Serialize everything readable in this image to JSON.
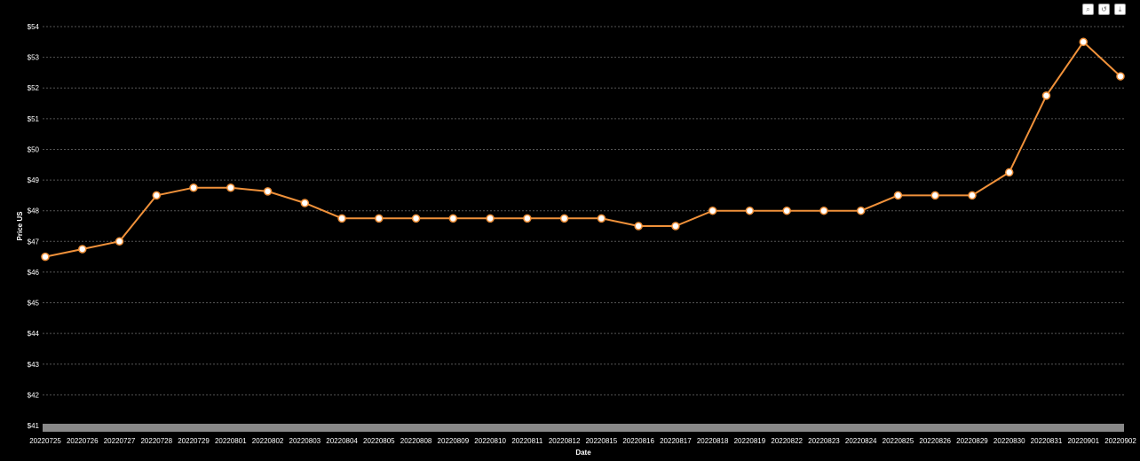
{
  "chart_data": {
    "type": "line",
    "xlabel": "Date",
    "ylabel": "Price US",
    "ylim": [
      41,
      54
    ],
    "y_tick_labels": [
      "$41",
      "$42",
      "$43",
      "$44",
      "$45",
      "$46",
      "$47",
      "$48",
      "$49",
      "$50",
      "$51",
      "$52",
      "$53",
      "$54"
    ],
    "grid": "horizontal dotted",
    "categories": [
      "20220725",
      "20220726",
      "20220727",
      "20220728",
      "20220729",
      "20220801",
      "20220802",
      "20220803",
      "20220804",
      "20220805",
      "20220808",
      "20220809",
      "20220810",
      "20220811",
      "20220812",
      "20220815",
      "20220816",
      "20220817",
      "20220818",
      "20220819",
      "20220822",
      "20220823",
      "20220824",
      "20220825",
      "20220826",
      "20220829",
      "20220830",
      "20220831",
      "20220901",
      "20220902"
    ],
    "values": [
      46.5,
      46.75,
      47.0,
      48.5,
      48.75,
      48.75,
      48.63,
      48.25,
      47.75,
      47.75,
      47.75,
      47.75,
      47.75,
      47.75,
      47.75,
      47.75,
      47.5,
      47.5,
      48.0,
      48.0,
      48.0,
      48.0,
      48.0,
      48.5,
      48.5,
      48.5,
      49.25,
      51.75,
      53.5,
      52.38
    ],
    "line_color": "#f0913a",
    "marker_fill": "#ffffff",
    "background": "#000000"
  },
  "toolbar": {
    "icons": [
      "zoom-icon",
      "reset-icon",
      "download-icon"
    ]
  }
}
